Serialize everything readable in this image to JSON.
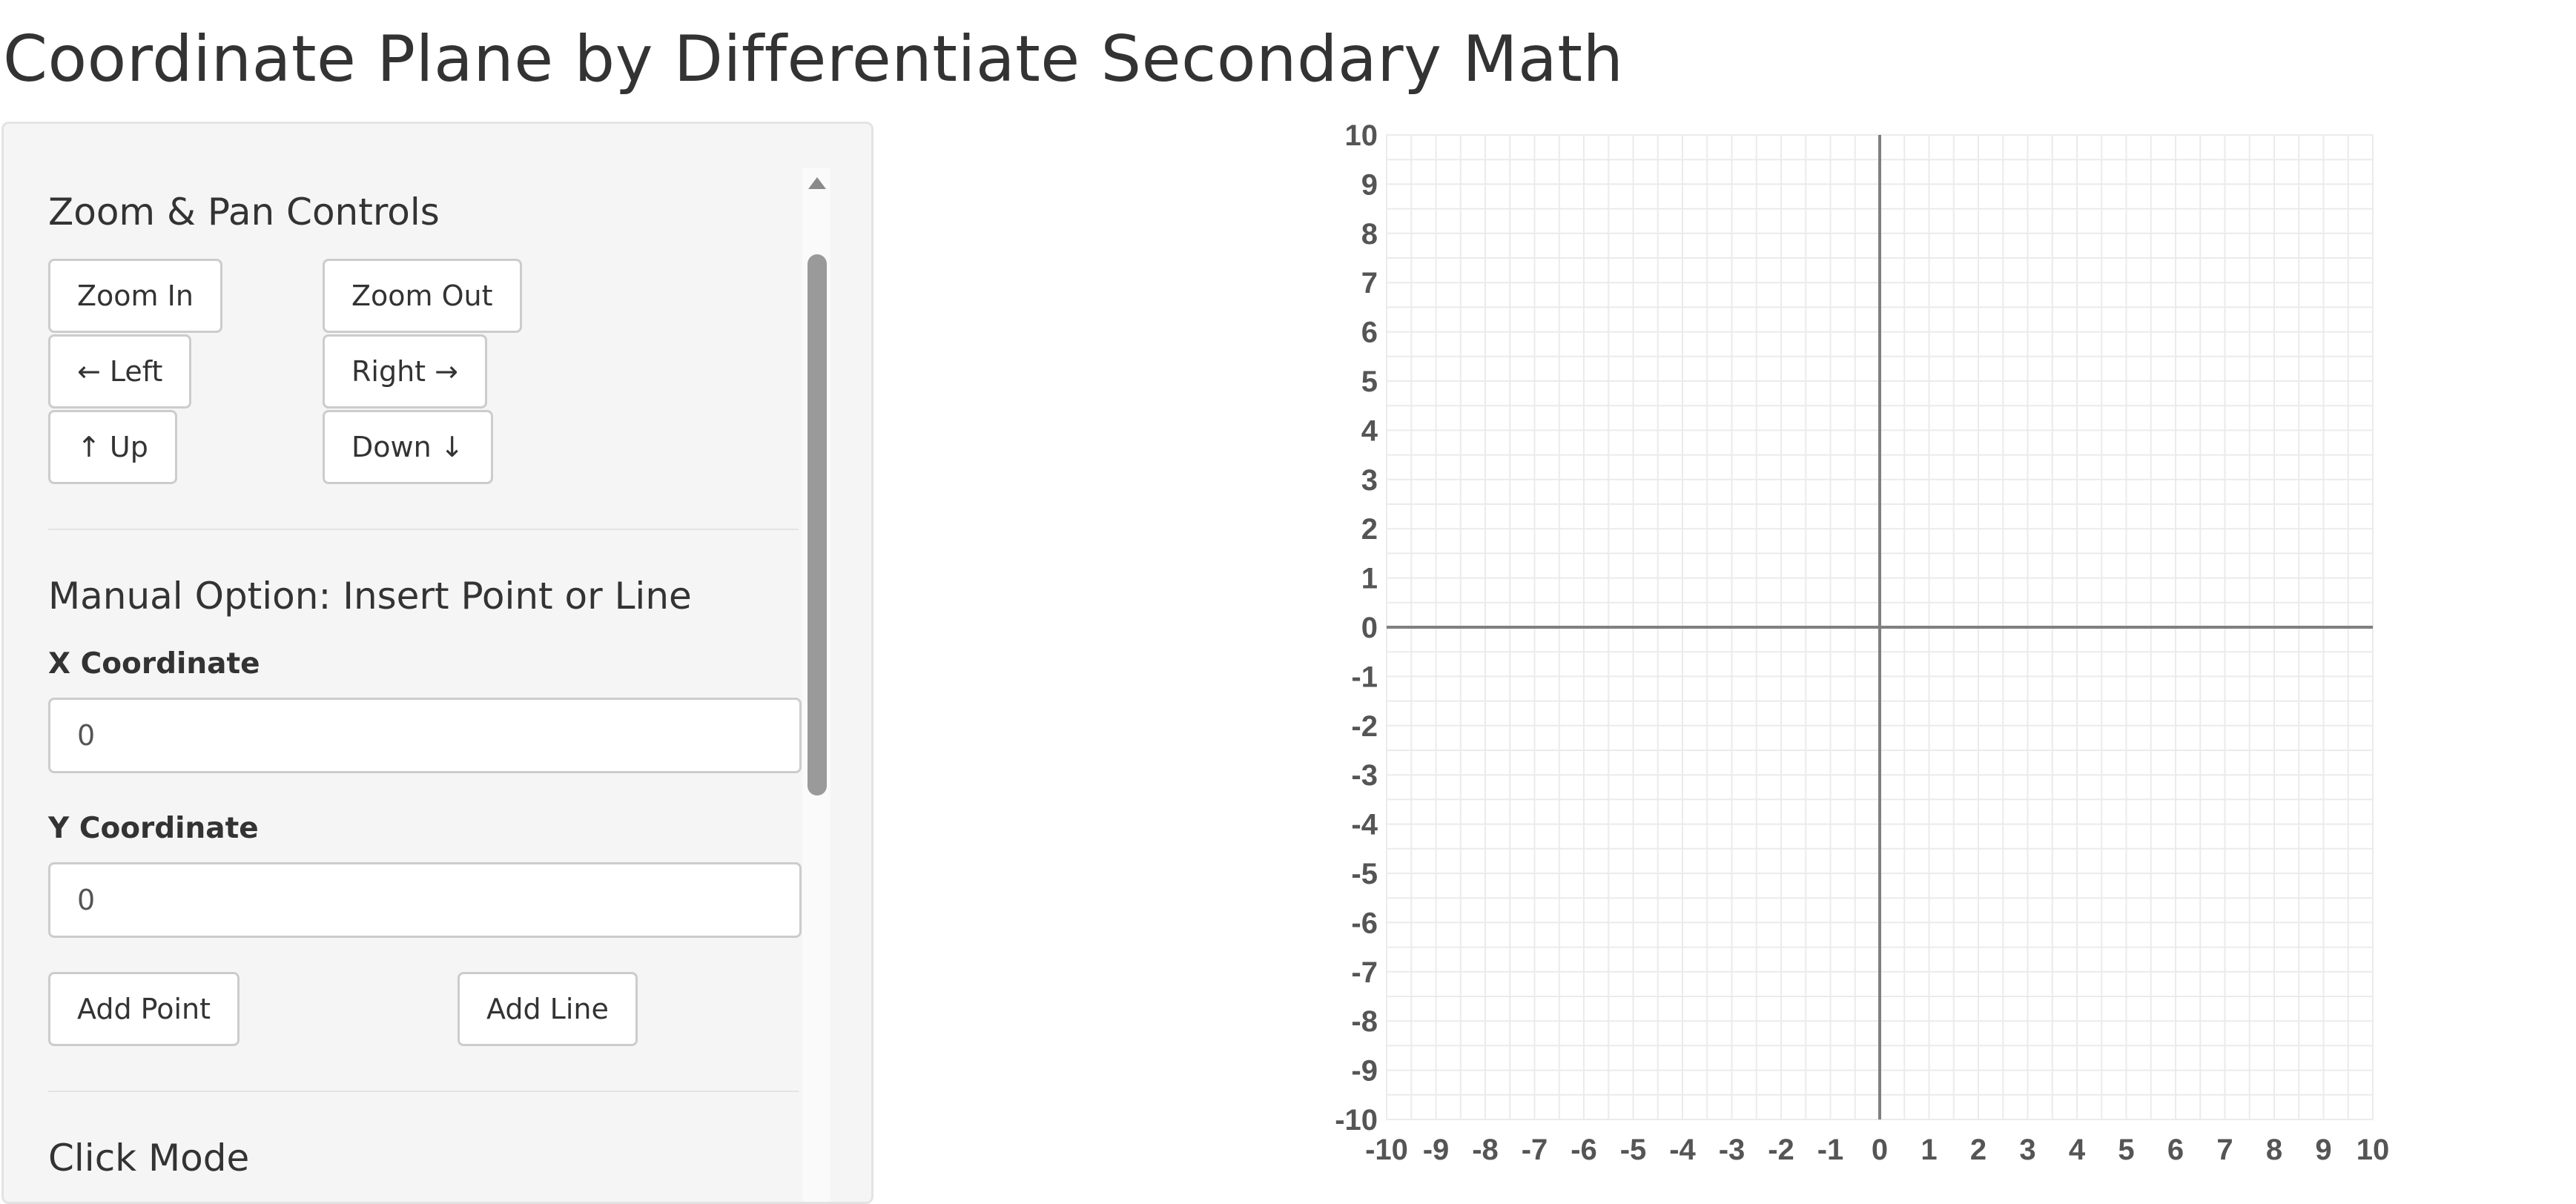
{
  "page": {
    "title": "Coordinate Plane by Differentiate Secondary Math"
  },
  "zoom_pan": {
    "title": "Zoom & Pan Controls",
    "zoom_in": "Zoom In",
    "zoom_out": "Zoom Out",
    "left": "← Left",
    "right": "Right →",
    "up": "↑ Up",
    "down": "Down ↓"
  },
  "manual": {
    "title": "Manual Option: Insert Point or Line",
    "x_label": "X Coordinate",
    "x_value": "0",
    "y_label": "Y Coordinate",
    "y_value": "0",
    "add_point": "Add Point",
    "add_line": "Add Line"
  },
  "click_mode": {
    "title": "Click Mode"
  },
  "chart_data": {
    "type": "scatter",
    "xlim": [
      -10,
      10
    ],
    "ylim": [
      -10,
      10
    ],
    "x_ticks": [
      -10,
      -9,
      -8,
      -7,
      -6,
      -5,
      -4,
      -3,
      -2,
      -1,
      0,
      1,
      2,
      3,
      4,
      5,
      6,
      7,
      8,
      9,
      10
    ],
    "y_ticks": [
      10,
      9,
      8,
      7,
      6,
      5,
      4,
      3,
      2,
      1,
      0,
      -1,
      -2,
      -3,
      -4,
      -5,
      -6,
      -7,
      -8,
      -9,
      -10
    ],
    "grid": true,
    "grid_step": 0.5,
    "colors": {
      "grid": "#ebebeb",
      "axis": "#808080",
      "tick_label": "#555555"
    },
    "series": []
  }
}
